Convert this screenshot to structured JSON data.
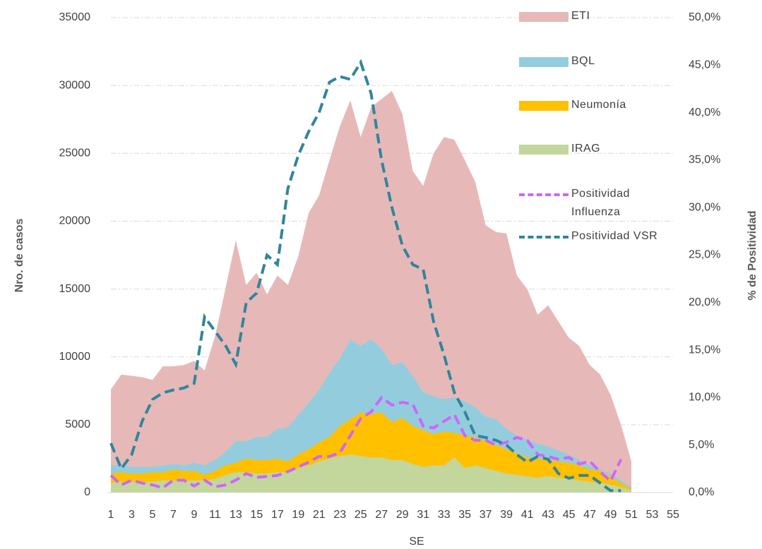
{
  "chart_data": {
    "type": "area-line",
    "x_label": "SE",
    "y_label": "Nro. de casos",
    "y2_label": "% de Positividad",
    "categories": [
      1,
      null,
      3,
      null,
      5,
      null,
      7,
      null,
      9,
      null,
      11,
      null,
      13,
      null,
      15,
      null,
      17,
      null,
      19,
      null,
      21,
      null,
      23,
      null,
      25,
      null,
      27,
      null,
      29,
      null,
      31,
      null,
      33,
      null,
      35,
      null,
      37,
      null,
      39,
      null,
      41,
      null,
      43,
      null,
      45,
      null,
      47,
      null,
      49,
      null,
      51,
      null,
      53,
      null,
      55
    ],
    "ylim": [
      0,
      35000
    ],
    "yticks": [
      0,
      5000,
      10000,
      15000,
      20000,
      25000,
      30000,
      35000
    ],
    "y2lim": [
      0,
      50
    ],
    "y2ticks": [
      {
        "value": 0,
        "label": "0,0%"
      },
      {
        "value": 5,
        "label": "5,0%"
      },
      {
        "value": 10,
        "label": "10,0%"
      },
      {
        "value": 15,
        "label": "15,0%"
      },
      {
        "value": 20,
        "label": "20,0%"
      },
      {
        "value": 25,
        "label": "25,0%"
      },
      {
        "value": 30,
        "label": "30,0%"
      },
      {
        "value": 35,
        "label": "35,0%"
      },
      {
        "value": 40,
        "label": "40,0%"
      },
      {
        "value": 45,
        "label": "45,0%"
      },
      {
        "value": 50,
        "label": "50,0%"
      }
    ],
    "grid": true,
    "series": [
      {
        "name": "ETI",
        "kind": "area",
        "color": "#e6b9b8",
        "values": [
          7600,
          8700,
          8600,
          8500,
          8300,
          9300,
          9300,
          9400,
          9700,
          9000,
          11500,
          15000,
          18600,
          15300,
          16200,
          14600,
          16000,
          15300,
          17400,
          20600,
          21900,
          24500,
          27000,
          28900,
          26200,
          28400,
          29000,
          29600,
          27900,
          23700,
          22600,
          25000,
          26200,
          26000,
          24500,
          22900,
          19700,
          19200,
          19100,
          16000,
          15000,
          13100,
          13800,
          12600,
          11400,
          10800,
          9400,
          8700,
          7200,
          5000,
          2300,
          null,
          null,
          null,
          null
        ]
      },
      {
        "name": "BQL",
        "kind": "area",
        "color": "#93cddd",
        "values": [
          2000,
          2000,
          1900,
          1900,
          1900,
          2000,
          2100,
          2000,
          2200,
          2000,
          2400,
          3000,
          3800,
          3800,
          4100,
          4100,
          4700,
          4800,
          5700,
          6600,
          7600,
          8800,
          9900,
          11300,
          10800,
          11300,
          10600,
          9400,
          9600,
          8600,
          7400,
          7100,
          6900,
          7000,
          6700,
          6300,
          5600,
          5400,
          4700,
          4200,
          3900,
          3600,
          3400,
          3100,
          2800,
          2400,
          2000,
          1700,
          1400,
          900,
          400,
          null,
          null,
          null,
          null
        ]
      },
      {
        "name": "Neumonía",
        "kind": "area",
        "color": "#ffc000",
        "values": [
          1400,
          1500,
          1400,
          1400,
          1500,
          1500,
          1700,
          1600,
          1600,
          1300,
          1600,
          2000,
          2200,
          2500,
          2400,
          2400,
          2500,
          2300,
          2800,
          3200,
          3700,
          4100,
          4900,
          5400,
          5900,
          5800,
          5900,
          5200,
          5500,
          4900,
          4600,
          4300,
          4500,
          4400,
          4200,
          4100,
          3800,
          3500,
          3200,
          2900,
          2600,
          2500,
          2400,
          2300,
          2200,
          2000,
          1700,
          1600,
          1200,
          700,
          300,
          null,
          null,
          null,
          null
        ]
      },
      {
        "name": "IRAG",
        "kind": "area",
        "color": "#c3d69b",
        "values": [
          700,
          800,
          800,
          800,
          800,
          900,
          900,
          900,
          900,
          900,
          1000,
          1300,
          1500,
          1500,
          1400,
          1400,
          1500,
          1500,
          1800,
          2000,
          2300,
          2500,
          2700,
          2800,
          2700,
          2600,
          2600,
          2400,
          2400,
          2100,
          1900,
          2000,
          2000,
          2600,
          1800,
          2000,
          1800,
          1600,
          1400,
          1300,
          1200,
          1100,
          1200,
          1100,
          1000,
          900,
          800,
          700,
          600,
          400,
          200,
          null,
          null,
          null,
          null
        ]
      },
      {
        "name": "Positividad Influenza",
        "kind": "line",
        "axis": "y2",
        "color": "#cc66ff",
        "values": [
          1.8,
          0.8,
          1.3,
          1.0,
          0.8,
          0.5,
          1.3,
          1.3,
          0.7,
          1.3,
          0.6,
          0.8,
          1.3,
          2.0,
          1.6,
          1.7,
          1.8,
          2.2,
          2.7,
          3.2,
          3.8,
          3.8,
          4.2,
          6.0,
          7.8,
          8.5,
          10.0,
          9.2,
          9.5,
          9.3,
          7.0,
          6.8,
          7.5,
          8.2,
          6.0,
          5.5,
          5.5,
          5.0,
          5.3,
          5.8,
          5.5,
          4.0,
          3.8,
          3.5,
          3.7,
          3.0,
          3.3,
          2.2,
          1.2,
          3.5,
          null,
          null,
          null,
          null,
          null
        ]
      },
      {
        "name": "Positividad  VSR",
        "kind": "line",
        "axis": "y2",
        "color": "#31859c",
        "values": [
          5.2,
          2.5,
          4.0,
          7.5,
          9.8,
          10.5,
          10.8,
          11.0,
          11.5,
          18.5,
          17.0,
          15.5,
          13.5,
          20.0,
          21.0,
          25.0,
          24.0,
          32.0,
          35.5,
          38.0,
          40.0,
          43.2,
          43.8,
          43.5,
          45.3,
          42.0,
          35.0,
          30.0,
          26.0,
          24.0,
          23.5,
          18.0,
          14.5,
          10.5,
          8.5,
          6.0,
          5.8,
          5.5,
          5.0,
          4.0,
          3.2,
          3.8,
          3.5,
          2.0,
          1.5,
          1.8,
          1.8,
          1.0,
          0.2,
          0.2,
          null,
          null,
          null,
          null,
          null
        ]
      }
    ]
  }
}
